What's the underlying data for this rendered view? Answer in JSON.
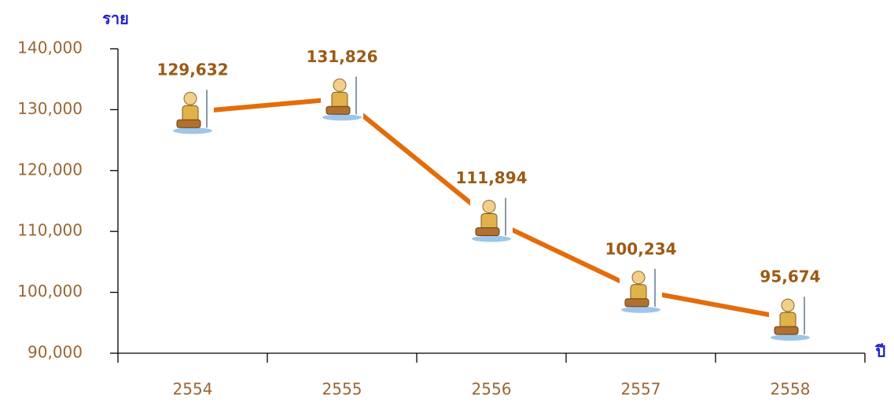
{
  "chart_data": {
    "type": "line",
    "y_label": "ราย",
    "x_label": "ปี",
    "categories": [
      "2554",
      "2555",
      "2556",
      "2557",
      "2558"
    ],
    "values": [
      129632,
      131826,
      111894,
      100234,
      95674
    ],
    "value_labels": [
      "129,632",
      "131,826",
      "111,894",
      "100,234",
      "95,674"
    ],
    "color": "#e46c0a",
    "ylim": [
      90000,
      140000
    ],
    "yticks": [
      {
        "value": 90000,
        "label": "90,000"
      },
      {
        "value": 100000,
        "label": "100,000"
      },
      {
        "value": 110000,
        "label": "110,000"
      },
      {
        "value": 120000,
        "label": "120,000"
      },
      {
        "value": 130000,
        "label": "130,000"
      },
      {
        "value": 140000,
        "label": "140,000"
      }
    ]
  }
}
